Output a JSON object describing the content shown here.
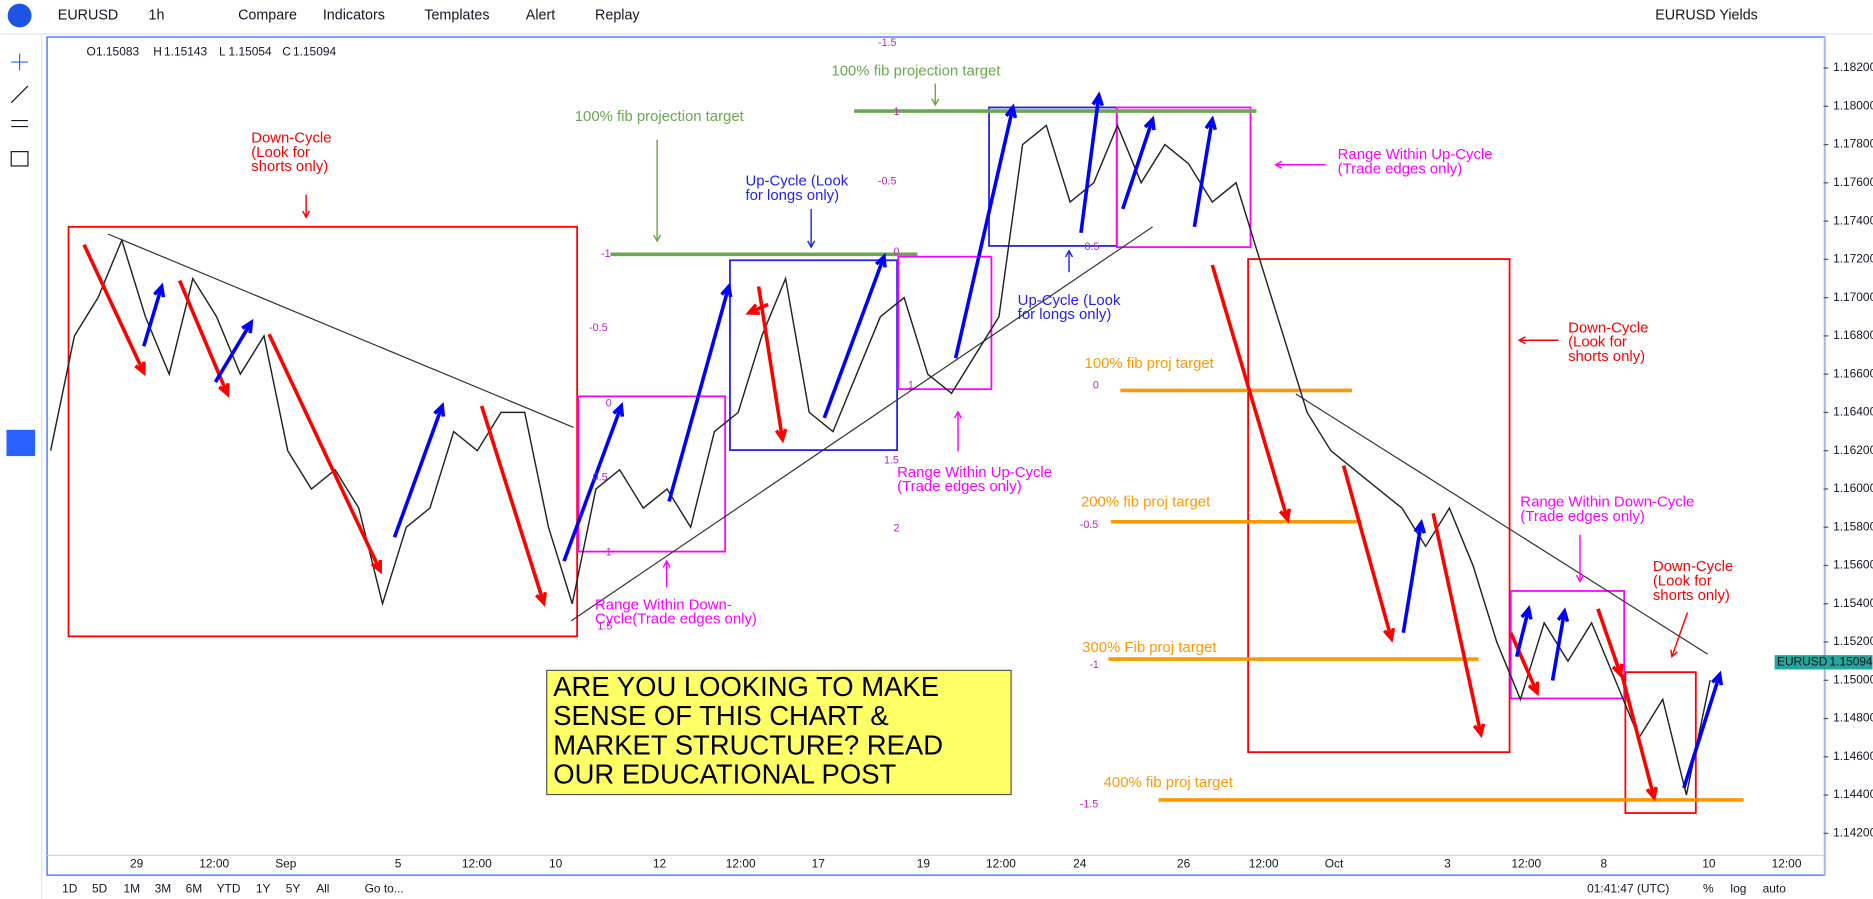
{
  "toolbar": {
    "symbol": "EURUSD",
    "interval": "1h",
    "buttons": [
      "Compare",
      "Indicators",
      "Templates",
      "Alert",
      "Replay"
    ],
    "watchlist": "EURUSD Yields"
  },
  "legend": {
    "open_label": "O",
    "open": "1.15083",
    "high_label": "H",
    "high": "1.15143",
    "low_label": "L",
    "low": "1.15054",
    "close_label": "C",
    "close": "1.15094"
  },
  "price_axis": {
    "ylim": [
      1.142,
      1.182
    ],
    "yticks": [
      {
        "value": 1.142,
        "label": "1.14200"
      },
      {
        "value": 1.144,
        "label": "1.14400"
      },
      {
        "value": 1.146,
        "label": "1.14600"
      },
      {
        "value": 1.148,
        "label": "1.14800"
      },
      {
        "value": 1.15,
        "label": "1.15000"
      },
      {
        "value": 1.152,
        "label": "1.15200"
      },
      {
        "value": 1.154,
        "label": "1.15400"
      },
      {
        "value": 1.156,
        "label": "1.15600"
      },
      {
        "value": 1.158,
        "label": "1.15800"
      },
      {
        "value": 1.16,
        "label": "1.16000"
      },
      {
        "value": 1.162,
        "label": "1.16200"
      },
      {
        "value": 1.164,
        "label": "1.16400"
      },
      {
        "value": 1.166,
        "label": "1.16600"
      },
      {
        "value": 1.168,
        "label": "1.16800"
      },
      {
        "value": 1.17,
        "label": "1.17000"
      },
      {
        "value": 1.172,
        "label": "1.17200"
      },
      {
        "value": 1.174,
        "label": "1.17400"
      },
      {
        "value": 1.176,
        "label": "1.17600"
      },
      {
        "value": 1.178,
        "label": "1.17800"
      },
      {
        "value": 1.18,
        "label": "1.18000"
      },
      {
        "value": 1.182,
        "label": "1.18200"
      }
    ],
    "last_symbol": "EURUSD",
    "last_price": {
      "value": 1.15094,
      "label": "1.15094"
    }
  },
  "time_axis": {
    "labels": [
      "29",
      "12:00",
      "Sep",
      "5",
      "12:00",
      "10",
      "12",
      "12:00",
      "17",
      "19",
      "12:00",
      "24",
      "26",
      "12:00",
      "Oct",
      "3",
      "12:00",
      "8",
      "10",
      "12:00"
    ]
  },
  "price_path": [
    1.162,
    1.168,
    1.17,
    1.173,
    1.169,
    1.166,
    1.171,
    1.169,
    1.166,
    1.168,
    1.162,
    1.16,
    1.161,
    1.159,
    1.154,
    1.158,
    1.159,
    1.163,
    1.162,
    1.164,
    1.164,
    1.158,
    1.154,
    1.16,
    1.161,
    1.159,
    1.16,
    1.158,
    1.163,
    1.164,
    1.168,
    1.171,
    1.164,
    1.163,
    1.166,
    1.169,
    1.17,
    1.166,
    1.165,
    1.167,
    1.169,
    1.178,
    1.179,
    1.175,
    1.176,
    1.179,
    1.176,
    1.178,
    1.177,
    1.175,
    1.176,
    1.172,
    1.168,
    1.164,
    1.162,
    1.161,
    1.16,
    1.159,
    1.157,
    1.159,
    1.156,
    1.152,
    1.149,
    1.153,
    1.151,
    1.153,
    1.15,
    1.147,
    1.149,
    1.144,
    1.15
  ],
  "annotations": [
    "Down-Cycle\n(Look for\nshorts only)",
    "100% fib projection target",
    "100% fib projection target",
    "Up-Cycle (Look\nfor longs only)",
    "Range Within Up-Cycle\n(Trade edges only)",
    "Up-Cycle (Look\nfor longs only)",
    "100% fib proj target",
    "Down-Cycle\n(Look for\nshorts only)",
    "Range Within Up-Cycle\n(Trade edges only)",
    "200% fib proj target",
    "Range Within Down-Cycle\n(Trade edges only)",
    "Range Within Down-\nCycle(Trade edges only)",
    "Down-Cycle\n(Look for\nshorts only)",
    "300% Fib proj target",
    "400% fib proj target"
  ],
  "fib_levels": [
    "-1.5",
    "-1",
    "-0.5",
    "0",
    "0.5",
    "1",
    "1.5",
    "1",
    "-0.5",
    "0",
    "1",
    "1.5",
    "2",
    "0.5",
    "0",
    "-0.5",
    "-1",
    "-1.5"
  ],
  "promo": "ARE YOU LOOKING TO MAKE\nSENSE OF THIS CHART &\nMARKET STRUCTURE? READ\nOUR EDUCATIONAL POST",
  "bottom_bar": {
    "ranges": [
      "1D",
      "5D",
      "1M",
      "3M",
      "6M",
      "YTD",
      "1Y",
      "5Y",
      "All"
    ],
    "goto": "Go to...",
    "clock": "01:41:47 (UTC)",
    "percent": "%",
    "log": "log",
    "auto": "auto"
  }
}
